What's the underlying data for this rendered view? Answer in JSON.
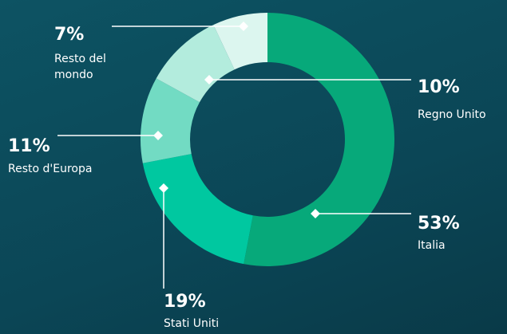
{
  "chart_data": {
    "type": "donut",
    "categories": [
      "Italia",
      "Stati Uniti",
      "Resto d'Europa",
      "Regno Unito",
      "Resto del mondo"
    ],
    "values": [
      53,
      19,
      11,
      10,
      7
    ],
    "value_labels": [
      "53%",
      "19%",
      "11%",
      "10%",
      "7%"
    ],
    "colors": [
      "#07a97a",
      "#00c8a0",
      "#72dbc3",
      "#b3ecdd",
      "#dcf6ef"
    ]
  }
}
